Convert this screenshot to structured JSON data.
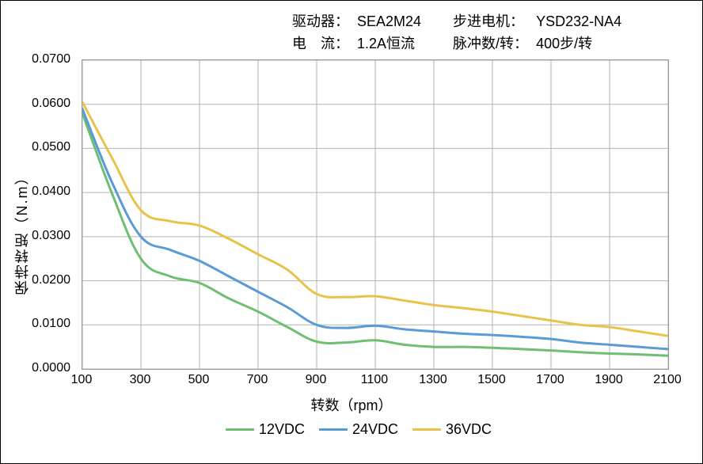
{
  "header": {
    "driver_k": "驱动器：",
    "driver_v": "SEA2M24",
    "motor_k": "步进电机：",
    "motor_v": "YSD232-NA4",
    "current_k": "电　流：",
    "current_v": "1.2A恒流",
    "pulse_k": "脉冲数/转：",
    "pulse_v": "400步/转"
  },
  "chart": {
    "type": "line",
    "ylabel": "保持转矩（N.m）",
    "xlabel": "转数（rpm）",
    "xlim": [
      100,
      2100
    ],
    "ylim": [
      0,
      0.07
    ],
    "xticks": [
      100,
      300,
      500,
      700,
      900,
      1100,
      1300,
      1500,
      1700,
      1900,
      2100
    ],
    "yticks": [
      "0.0000",
      "0.0100",
      "0.0200",
      "0.0300",
      "0.0400",
      "0.0500",
      "0.0600",
      "0.0700"
    ],
    "grid_color": "#b3b3b3",
    "border_color": "#999999",
    "background_color": "#ffffff",
    "line_width": 3,
    "x": [
      100,
      200,
      300,
      400,
      500,
      600,
      700,
      800,
      900,
      1000,
      1100,
      1200,
      1300,
      1400,
      1500,
      1600,
      1700,
      1800,
      1900,
      2000,
      2100
    ],
    "series": [
      {
        "name": "12VDC",
        "color": "#6fbf73",
        "y": [
          0.058,
          0.04,
          0.025,
          0.021,
          0.0195,
          0.016,
          0.013,
          0.0095,
          0.0062,
          0.006,
          0.0065,
          0.0055,
          0.005,
          0.005,
          0.0048,
          0.0045,
          0.0042,
          0.0038,
          0.0035,
          0.0033,
          0.003
        ]
      },
      {
        "name": "24VDC",
        "color": "#5b9bd5",
        "y": [
          0.059,
          0.0425,
          0.03,
          0.027,
          0.0245,
          0.021,
          0.0175,
          0.014,
          0.01,
          0.0093,
          0.0098,
          0.009,
          0.0085,
          0.008,
          0.0077,
          0.0073,
          0.0068,
          0.006,
          0.0055,
          0.005,
          0.0045
        ]
      },
      {
        "name": "36VDC",
        "color": "#e8c34b",
        "y": [
          0.0605,
          0.048,
          0.036,
          0.0335,
          0.0325,
          0.0295,
          0.026,
          0.0225,
          0.017,
          0.0163,
          0.0165,
          0.0155,
          0.0145,
          0.0138,
          0.013,
          0.012,
          0.011,
          0.01,
          0.0095,
          0.0085,
          0.0075
        ]
      }
    ]
  },
  "legend": [
    {
      "color": "#6fbf73",
      "label": "12VDC"
    },
    {
      "color": "#5b9bd5",
      "label": "24VDC"
    },
    {
      "color": "#e8c34b",
      "label": "36VDC"
    }
  ]
}
